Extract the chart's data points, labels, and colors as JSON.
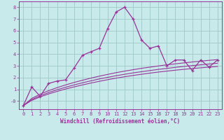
{
  "xlabel": "Windchill (Refroidissement éolien,°C)",
  "background_color": "#c8eaea",
  "grid_color": "#a0c8c8",
  "line_color": "#993399",
  "x_data": [
    0,
    1,
    2,
    3,
    4,
    5,
    6,
    7,
    8,
    9,
    10,
    11,
    12,
    13,
    14,
    15,
    16,
    17,
    18,
    19,
    20,
    21,
    22,
    23
  ],
  "y_data_main": [
    -0.4,
    1.2,
    0.4,
    1.5,
    1.7,
    1.8,
    2.8,
    3.9,
    4.2,
    4.5,
    6.2,
    7.6,
    8.0,
    7.0,
    5.2,
    4.5,
    4.7,
    3.0,
    3.5,
    3.5,
    2.6,
    3.5,
    2.9,
    3.5
  ],
  "y_data_line1": [
    -0.4,
    0.05,
    0.35,
    0.6,
    0.82,
    1.02,
    1.2,
    1.37,
    1.53,
    1.68,
    1.82,
    1.95,
    2.07,
    2.18,
    2.28,
    2.38,
    2.47,
    2.55,
    2.63,
    2.7,
    2.77,
    2.83,
    2.89,
    2.95
  ],
  "y_data_line2": [
    -0.4,
    0.12,
    0.45,
    0.72,
    0.96,
    1.17,
    1.37,
    1.55,
    1.72,
    1.88,
    2.02,
    2.16,
    2.28,
    2.4,
    2.5,
    2.6,
    2.7,
    2.78,
    2.87,
    2.95,
    3.02,
    3.09,
    3.16,
    3.22
  ],
  "y_data_line3": [
    -0.4,
    0.22,
    0.58,
    0.88,
    1.14,
    1.37,
    1.58,
    1.77,
    1.95,
    2.12,
    2.27,
    2.42,
    2.55,
    2.67,
    2.79,
    2.89,
    2.99,
    3.09,
    3.17,
    3.25,
    3.33,
    3.4,
    3.47,
    3.53
  ],
  "ylim": [
    -0.7,
    8.5
  ],
  "xlim": [
    -0.5,
    23.5
  ],
  "ytick_labels": [
    "-0",
    "1",
    "2",
    "3",
    "4",
    "5",
    "6",
    "7",
    "8"
  ],
  "ytick_vals": [
    0,
    1,
    2,
    3,
    4,
    5,
    6,
    7,
    8
  ],
  "xticks": [
    0,
    1,
    2,
    3,
    4,
    5,
    6,
    7,
    8,
    9,
    10,
    11,
    12,
    13,
    14,
    15,
    16,
    17,
    18,
    19,
    20,
    21,
    22,
    23
  ],
  "font_size_tick": 5.0,
  "font_size_xlabel": 5.5
}
